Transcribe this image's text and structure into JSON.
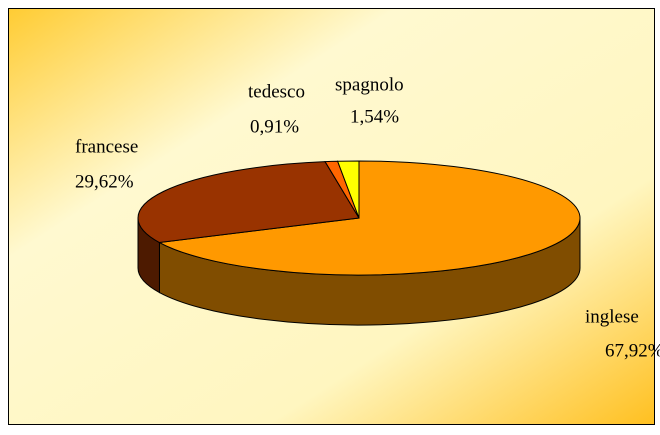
{
  "chart_data": {
    "type": "pie",
    "categories": [
      "inglese",
      "francese",
      "tedesco",
      "spagnolo"
    ],
    "values": [
      67.92,
      29.62,
      0.91,
      1.54
    ],
    "value_labels": [
      "67,92%",
      "29,62%",
      "0,91%",
      "1,54%"
    ],
    "colors": [
      "#FF9900",
      "#993300",
      "#FF6600",
      "#FFFF00"
    ]
  }
}
